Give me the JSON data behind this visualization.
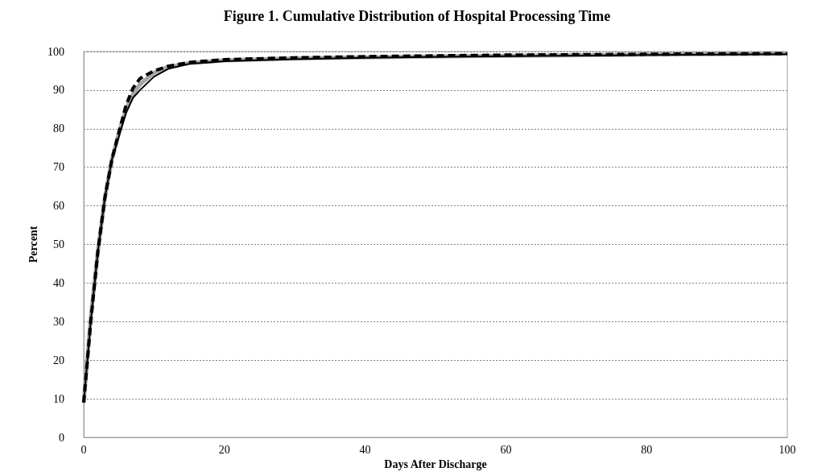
{
  "chart_data": {
    "type": "line",
    "title": "Figure 1. Cumulative Distribution of Hospital Processing Time",
    "xlabel": "Days After Discharge",
    "ylabel": "Percent",
    "xlim": [
      0,
      100
    ],
    "xticks": [
      0,
      20,
      40,
      60,
      80,
      100
    ],
    "ylim": [
      0,
      100
    ],
    "yticks": [
      0,
      10,
      20,
      30,
      40,
      50,
      60,
      70,
      80,
      90,
      100
    ],
    "grid": "y",
    "marker": "none",
    "series": [
      {
        "color": "#a6a6a6",
        "line_style": "solid",
        "x": [
          0,
          1,
          2,
          3,
          4,
          5,
          6,
          7,
          8,
          10,
          12,
          15,
          20,
          30,
          40,
          60,
          80,
          100
        ],
        "values": [
          9,
          31,
          48,
          62,
          72,
          79,
          85,
          89,
          91.5,
          94.5,
          96,
          97,
          97.7,
          98.2,
          98.5,
          98.9,
          99.2,
          99.4
        ]
      },
      {
        "color": "#000000",
        "line_style": "solid",
        "x": [
          0,
          1,
          2,
          3,
          4,
          5,
          6,
          7,
          8,
          10,
          12,
          15,
          20,
          30,
          40,
          60,
          80,
          100
        ],
        "values": [
          9,
          30,
          48,
          62,
          72,
          78,
          84,
          88,
          90,
          93.5,
          95.5,
          96.8,
          97.5,
          98,
          98.4,
          98.8,
          99.1,
          99.3
        ]
      },
      {
        "color": "#000000",
        "line_style": "dashed",
        "x": [
          0,
          1,
          2,
          3,
          4,
          5,
          6,
          7,
          8,
          10,
          12,
          15,
          20,
          30,
          40,
          60,
          80,
          100
        ],
        "values": [
          9,
          30,
          48,
          62,
          72,
          79,
          86,
          90.5,
          93,
          95,
          96.2,
          97.2,
          97.9,
          98.4,
          98.7,
          99.1,
          99.3,
          99.5
        ]
      }
    ]
  }
}
